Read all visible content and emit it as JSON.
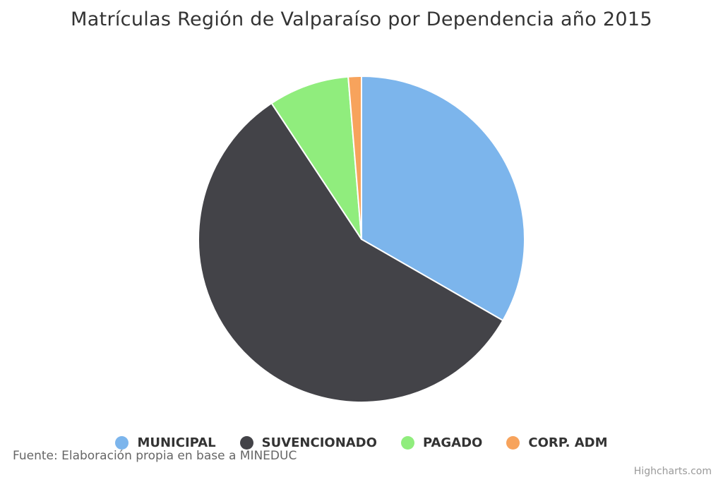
{
  "chart_data": {
    "type": "pie",
    "title": "Matrículas Región de Valparaíso por Dependencia año 2015",
    "series": [
      {
        "name": "MUNICIPAL",
        "value": 33.3,
        "color": "#7cb5ec"
      },
      {
        "name": "SUVENCIONADO",
        "value": 57.4,
        "color": "#434348"
      },
      {
        "name": "PAGADO",
        "value": 8.0,
        "color": "#90ed7d"
      },
      {
        "name": "CORP. ADM",
        "value": 1.3,
        "color": "#f7a35c"
      }
    ],
    "legend_position": "bottom-center"
  },
  "source_note": "Fuente: Elaboración propia en base a MINEDUC",
  "credits": "Highcharts.com"
}
